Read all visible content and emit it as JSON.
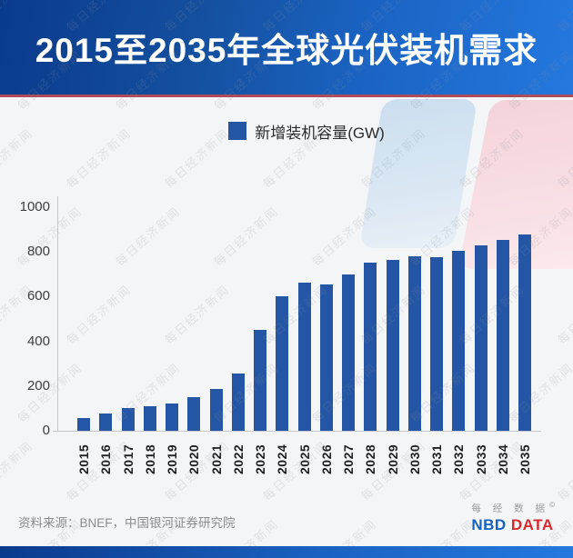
{
  "title": "2015至2035年全球光伏装机需求",
  "watermark": {
    "text": "每日经济新闻"
  },
  "chart_data": {
    "type": "bar",
    "title": "2015至2035年全球光伏装机需求",
    "legend_label": "新增装机容量(GW)",
    "legend_position": "top",
    "categories": [
      "2015",
      "2016",
      "2017",
      "2018",
      "2019",
      "2020",
      "2021",
      "2022",
      "2023",
      "2024",
      "2025",
      "2026",
      "2027",
      "2028",
      "2029",
      "2030",
      "2031",
      "2032",
      "2033",
      "2034",
      "2035"
    ],
    "values": [
      57,
      77,
      102,
      108,
      121,
      152,
      185,
      255,
      450,
      600,
      661,
      656,
      700,
      750,
      766,
      782,
      776,
      806,
      828,
      854,
      878
    ],
    "xlabel": "",
    "ylabel": "",
    "ylim": [
      0,
      1000
    ],
    "yticks": [
      0,
      200,
      400,
      600,
      800,
      1000
    ],
    "grid": false,
    "x_tick_rotation": 90,
    "bar_color": "#2456a5"
  },
  "footer": {
    "source": "资料来源：BNEF，中国银河证券研究院",
    "logo": {
      "cn": "每 经 数 据",
      "reg": "©",
      "nbd": "NBD",
      "data": "DATA"
    }
  },
  "colors": {
    "banner_gradient_from": "#0b3a8c",
    "banner_gradient_to": "#2478de",
    "divider_red": "#ae4b58",
    "bar_blue": "#2456a5",
    "decor_blue": "#cbdeef",
    "decor_pink": "#f4d3da",
    "nbd_blue": "#1462be",
    "nbd_red": "#d5282f",
    "background": "#f4f5f7"
  }
}
